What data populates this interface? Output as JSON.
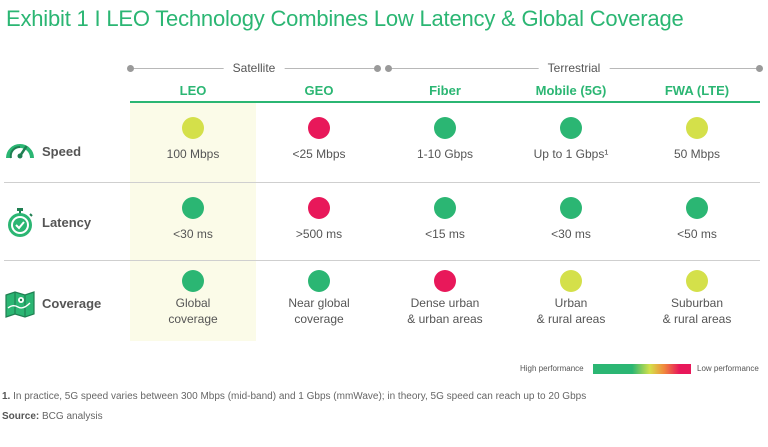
{
  "title": "Exhibit 1 I LEO Technology Combines Low Latency & Global Coverage",
  "colors": {
    "green": "#2bb673",
    "yellow": "#d4e04a",
    "red": "#e8185a"
  },
  "chart_data": {
    "type": "table",
    "groups": [
      {
        "label": "Satellite",
        "columns": [
          "LEO",
          "GEO"
        ]
      },
      {
        "label": "Terrestrial",
        "columns": [
          "Fiber",
          "Mobile (5G)",
          "FWA (LTE)"
        ]
      }
    ],
    "columns": [
      "LEO",
      "GEO",
      "Fiber",
      "Mobile (5G)",
      "FWA (LTE)"
    ],
    "highlighted_column": "LEO",
    "rows": [
      {
        "label": "Speed",
        "icon": "speedometer-icon",
        "cells": [
          {
            "rating": "yellow",
            "lines": [
              "100 Mbps"
            ]
          },
          {
            "rating": "red",
            "lines": [
              "<25 Mbps"
            ]
          },
          {
            "rating": "green",
            "lines": [
              "1-10 Gbps"
            ]
          },
          {
            "rating": "green",
            "lines": [
              "Up to 1 Gbps¹"
            ]
          },
          {
            "rating": "yellow",
            "lines": [
              "50 Mbps"
            ]
          }
        ]
      },
      {
        "label": "Latency",
        "icon": "stopwatch-icon",
        "cells": [
          {
            "rating": "green",
            "lines": [
              "<30 ms"
            ]
          },
          {
            "rating": "red",
            "lines": [
              ">500 ms"
            ]
          },
          {
            "rating": "green",
            "lines": [
              "<15 ms"
            ]
          },
          {
            "rating": "green",
            "lines": [
              "<30 ms"
            ]
          },
          {
            "rating": "green",
            "lines": [
              "<50 ms"
            ]
          }
        ]
      },
      {
        "label": "Coverage",
        "icon": "map-icon",
        "cells": [
          {
            "rating": "green",
            "lines": [
              "Global",
              "coverage"
            ]
          },
          {
            "rating": "green",
            "lines": [
              "Near global",
              "coverage"
            ]
          },
          {
            "rating": "red",
            "lines": [
              "Dense urban",
              "& urban areas"
            ]
          },
          {
            "rating": "yellow",
            "lines": [
              "Urban",
              "& rural areas"
            ]
          },
          {
            "rating": "yellow",
            "lines": [
              "Suburban",
              "& rural areas"
            ]
          }
        ]
      }
    ],
    "legend": {
      "high": "High performance",
      "low": "Low performance"
    }
  },
  "footnote": {
    "num": "1.",
    "text": " In practice, 5G speed varies between 300 Mbps (mid-band) and 1 Gbps (mmWave); in theory, 5G speed can reach up to 20 Gbps"
  },
  "source": {
    "label": "Source:",
    "text": " BCG analysis"
  }
}
